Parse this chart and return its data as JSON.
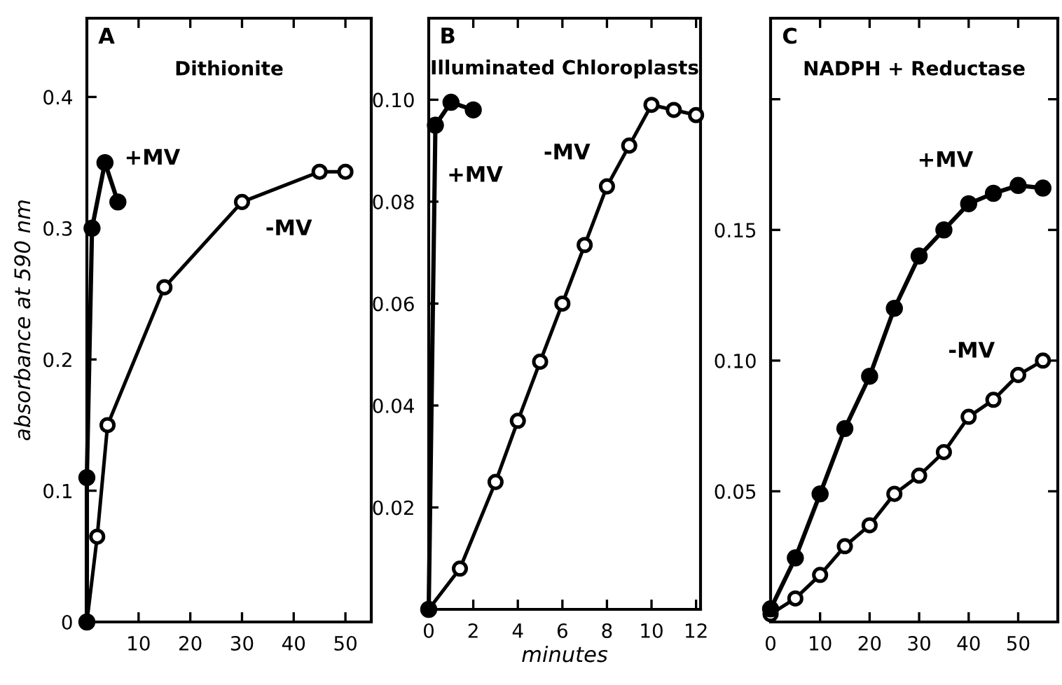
{
  "chart_data": [
    {
      "type": "line",
      "title": "A",
      "subtitle": "Dithionite",
      "ylabel": "absorbance at 590 nm",
      "marker": "circle",
      "xlim": [
        0,
        55
      ],
      "ylim": [
        0,
        0.46
      ],
      "xticks": [
        10,
        20,
        30,
        40,
        50
      ],
      "yticks": [
        {
          "value": 0,
          "label": "0"
        },
        {
          "value": 0.1,
          "label": "0.1"
        },
        {
          "value": 0.2,
          "label": "0.2"
        },
        {
          "value": 0.3,
          "label": "0.3"
        },
        {
          "value": 0.4,
          "label": "0.4"
        }
      ],
      "series": [
        {
          "name": "+MV",
          "color": "#000000",
          "x": [
            0,
            0,
            1,
            3.5,
            6
          ],
          "values": [
            0,
            0.11,
            0.3,
            0.35,
            0.32
          ]
        },
        {
          "name": "-MV",
          "color": "#000000",
          "x": [
            0,
            2,
            4,
            15,
            30,
            45,
            50
          ],
          "values": [
            0,
            0.065,
            0.15,
            0.255,
            0.32,
            0.343,
            0.343
          ]
        }
      ]
    },
    {
      "type": "line",
      "title": "B",
      "subtitle": "Illuminated Chloroplasts",
      "xlabel": "minutes",
      "marker": "circle",
      "xlim": [
        0,
        12.2
      ],
      "ylim": [
        0,
        0.116
      ],
      "xticks": [
        0,
        2,
        4,
        6,
        8,
        10,
        12
      ],
      "yticks": [
        {
          "value": 0.02,
          "label": "0.02"
        },
        {
          "value": 0.04,
          "label": "0.04"
        },
        {
          "value": 0.06,
          "label": "0.06"
        },
        {
          "value": 0.08,
          "label": "0.08"
        },
        {
          "value": 0.1,
          "label": "0.10"
        }
      ],
      "series": [
        {
          "name": "+MV",
          "color": "#000000",
          "x": [
            0,
            0.3,
            1,
            2
          ],
          "values": [
            0,
            0.095,
            0.0995,
            0.098
          ]
        },
        {
          "name": "-MV",
          "color": "#000000",
          "x": [
            0,
            1.4,
            3,
            4,
            5,
            6,
            7,
            8,
            9,
            10,
            11,
            12
          ],
          "values": [
            0,
            0.008,
            0.025,
            0.037,
            0.0486,
            0.06,
            0.0715,
            0.083,
            0.091,
            0.099,
            0.098,
            0.097
          ]
        }
      ]
    },
    {
      "type": "line",
      "title": "C",
      "subtitle": "NADPH + Reductase",
      "marker": "circle",
      "xlim": [
        0,
        58
      ],
      "ylim": [
        0,
        0.231
      ],
      "xticks": [
        0,
        10,
        20,
        30,
        40,
        50
      ],
      "yticks": [
        {
          "value": 0.05,
          "label": "0.05"
        },
        {
          "value": 0.1,
          "label": "0.10"
        },
        {
          "value": 0.15,
          "label": "0.15"
        },
        {
          "value": 0.2,
          "label": null
        }
      ],
      "series": [
        {
          "name": "+MV",
          "color": "#000000",
          "x": [
            0,
            5,
            10,
            15,
            20,
            25,
            30,
            35,
            40,
            45,
            50,
            55
          ],
          "values": [
            0.005,
            0.0245,
            0.049,
            0.074,
            0.094,
            0.12,
            0.14,
            0.15,
            0.16,
            0.164,
            0.167,
            0.166
          ]
        },
        {
          "name": "-MV",
          "color": "#000000",
          "x": [
            0,
            5,
            10,
            15,
            20,
            25,
            30,
            35,
            40,
            45,
            50,
            55
          ],
          "values": [
            0.003,
            0.009,
            0.018,
            0.029,
            0.037,
            0.049,
            0.056,
            0.065,
            0.0785,
            0.085,
            0.0945,
            0.1
          ]
        }
      ]
    }
  ]
}
